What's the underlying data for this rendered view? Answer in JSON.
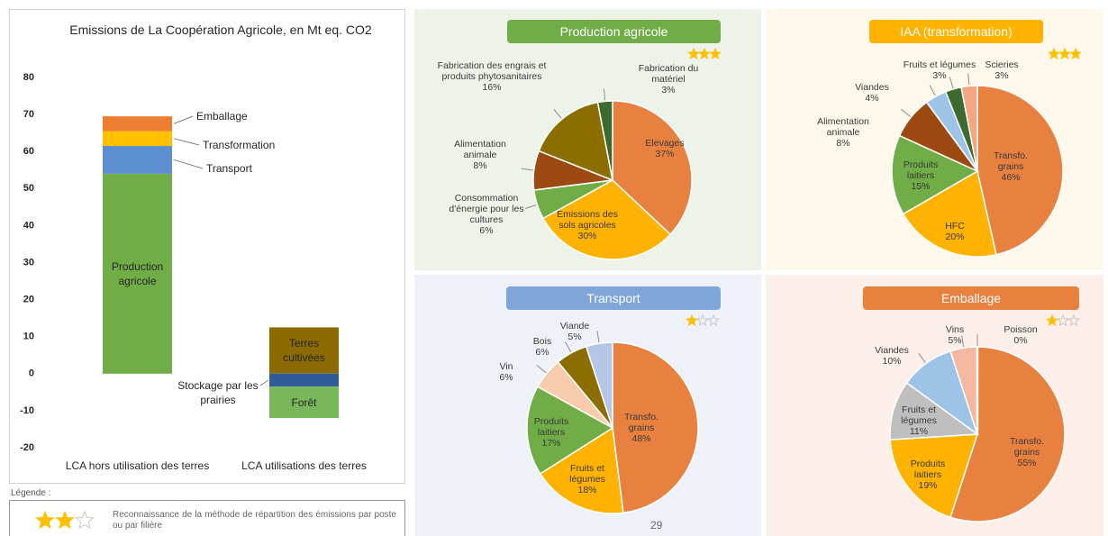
{
  "chart_data": [
    {
      "type": "bar",
      "stacked": true,
      "title": "Emissions de La Coopération Agricole, en Mt eq. CO2",
      "categories": [
        "LCA hors utilisation des terres",
        "LCA utilisations des terres"
      ],
      "series": [
        {
          "name": "Production agricole",
          "color": "#70ad47",
          "values": [
            54,
            null
          ]
        },
        {
          "name": "Transport",
          "color": "#5b8fd0",
          "values": [
            7.5,
            null
          ]
        },
        {
          "name": "Transformation",
          "color": "#ffc000",
          "values": [
            4,
            null
          ]
        },
        {
          "name": "Emballage",
          "color": "#ed7d31",
          "values": [
            4,
            null
          ]
        },
        {
          "name": "Terres cultivées",
          "color": "#8c6a00",
          "values": [
            null,
            12.5
          ]
        },
        {
          "name": "Stockage par les prairies",
          "color": "#2e5c97",
          "values": [
            null,
            -3.5
          ]
        },
        {
          "name": "Forêt",
          "color": "#77b85a",
          "values": [
            null,
            -8.5
          ]
        }
      ],
      "ylim": [
        -20,
        80
      ],
      "yticks": [
        -20,
        -10,
        0,
        10,
        20,
        30,
        40,
        50,
        60,
        70,
        80
      ]
    },
    {
      "type": "pie",
      "title": "Production agricole",
      "title_color": "#70ad47",
      "rating": 3,
      "categories": [
        "Elevages",
        "Emissions des sols agricoles",
        "Consommation d'énergie pour les cultures",
        "Alimentation animale",
        "Fabrication des engrais et produits phytosanitaires",
        "Fabrication du matériel"
      ],
      "values": [
        37,
        30,
        6,
        8,
        16,
        3
      ],
      "value_labels": [
        "37%",
        "30%",
        "6%",
        "8%",
        "16%",
        "3%"
      ],
      "colors": [
        "#e8803f",
        "#ffb300",
        "#70ad47",
        "#9c4a12",
        "#8c6e00",
        "#3d6b2f"
      ]
    },
    {
      "type": "pie",
      "title": "IAA (transformation)",
      "title_color": "#ffb300",
      "rating": 3,
      "categories": [
        "Transfo. grains",
        "HFC",
        "Produits laitiers",
        "Alimentation animale",
        "Viandes",
        "Fruits et légumes",
        "Scieries"
      ],
      "values": [
        46,
        20,
        15,
        8,
        4,
        3,
        3
      ],
      "value_labels": [
        "46%",
        "20%",
        "15%",
        "8%",
        "4%",
        "3%",
        "3%"
      ],
      "colors": [
        "#e8803f",
        "#ffb300",
        "#70ad47",
        "#9c4a12",
        "#9dc3e6",
        "#3d6b2f",
        "#f4a582"
      ]
    },
    {
      "type": "pie",
      "title": "Transport",
      "title_color": "#7ea6d8",
      "rating": 1,
      "categories": [
        "Transfo. grains",
        "Fruits et légumes",
        "Produits laitiers",
        "Vin",
        "Bois",
        "Viande"
      ],
      "values": [
        48,
        18,
        17,
        6,
        6,
        5
      ],
      "value_labels": [
        "48%",
        "18%",
        "17%",
        "6%",
        "6%",
        "5%"
      ],
      "colors": [
        "#e8803f",
        "#ffb300",
        "#70ad47",
        "#f8cbad",
        "#8c6e00",
        "#b4c7e7"
      ]
    },
    {
      "type": "pie",
      "title": "Emballage",
      "title_color": "#e8803f",
      "rating": 1,
      "categories": [
        "Transfo. grains",
        "Produits laitiers",
        "Fruits et légumes",
        "Viandes",
        "Vins",
        "Poisson"
      ],
      "values": [
        55,
        19,
        11,
        10,
        5,
        0
      ],
      "value_labels": [
        "55%",
        "19%",
        "11%",
        "10%",
        "5%",
        "0%"
      ],
      "colors": [
        "#e8803f",
        "#ffb300",
        "#bfbfbf",
        "#9dc3e6",
        "#f4b8a0",
        "#70ad47"
      ]
    }
  ],
  "legend": {
    "title": "Légende :",
    "rating": 2,
    "text": "Reconnaissance de la méthode de répartition des émissions par poste ou par filière"
  },
  "page_number": 29
}
